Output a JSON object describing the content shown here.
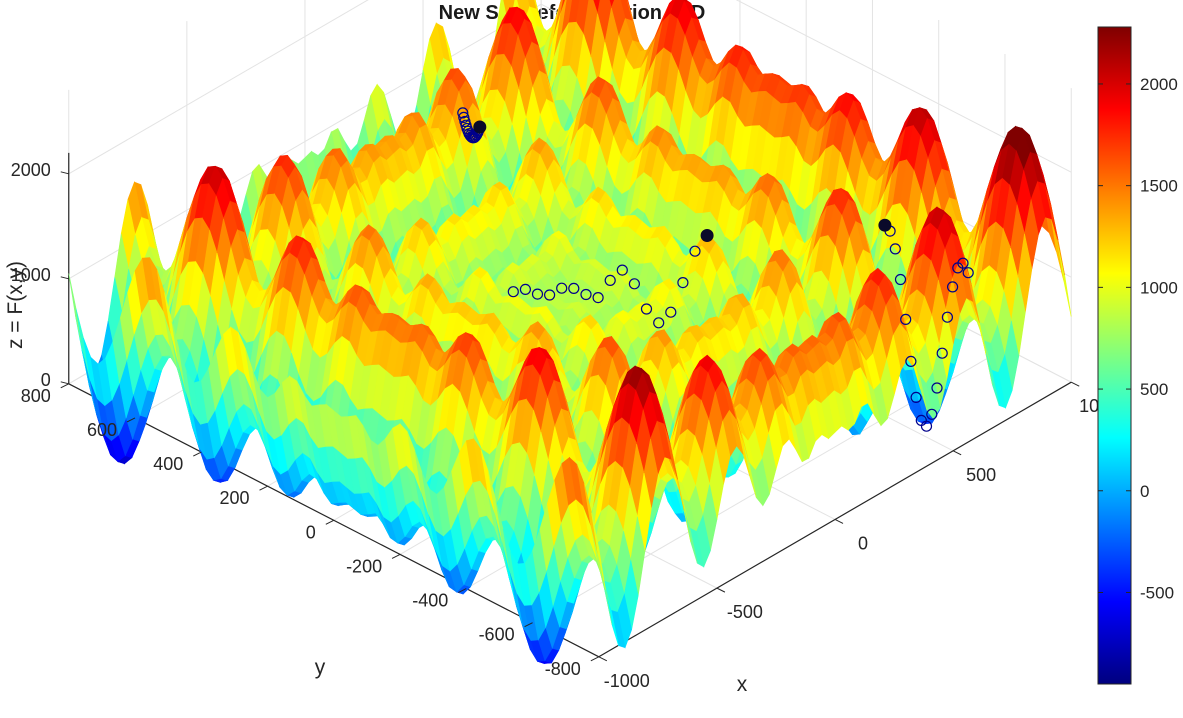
{
  "chart_data": {
    "type": "surface3d",
    "title": "New Schwefel Function - 3D",
    "xlabel": "x",
    "ylabel": "y",
    "zlabel": "z = F(x,y)",
    "xlim": [
      -1000,
      1000
    ],
    "ylim": [
      -800,
      800
    ],
    "zlim": [
      0,
      2000
    ],
    "x_ticks": [
      "-1000",
      "-500",
      "0",
      "500",
      "1000"
    ],
    "y_ticks": [
      "-800",
      "-600",
      "-400",
      "-200",
      "0",
      "200",
      "400",
      "600",
      "800"
    ],
    "z_ticks": [
      "0",
      "1000",
      "2000"
    ],
    "colormap": "jet",
    "colorbar": {
      "range": [
        -950,
        2280
      ],
      "ticks": [
        "-500",
        "0",
        "500",
        "1000",
        "1500",
        "2000"
      ]
    },
    "overlay": {
      "type": "scatter3d",
      "marker_color": "#00008b",
      "paths": [
        [
          [
            640,
            780
          ],
          [
            600,
            700
          ]
        ],
        [
          [
            620,
            -760
          ],
          [
            800,
            -380
          ]
        ],
        [
          [
            -100,
            100
          ],
          [
            300,
            -200
          ]
        ]
      ]
    }
  }
}
